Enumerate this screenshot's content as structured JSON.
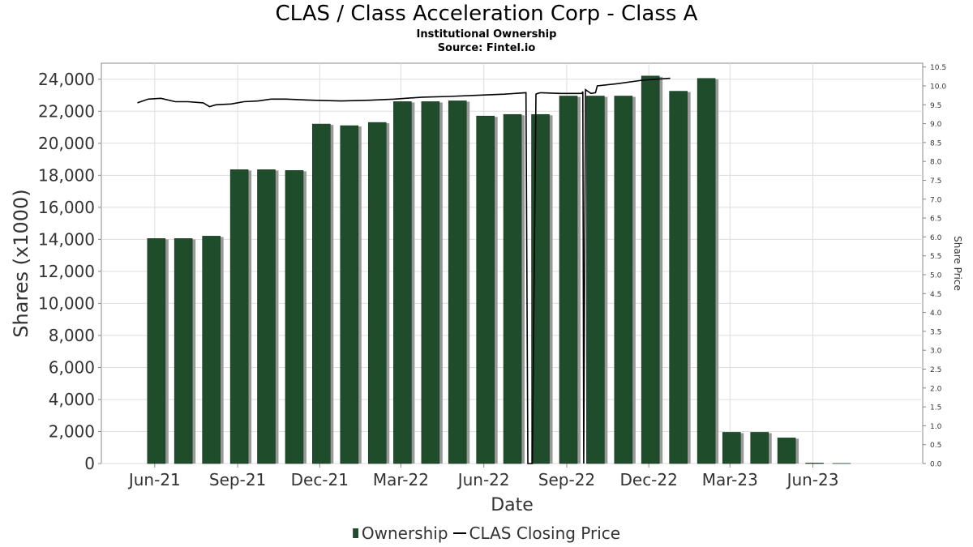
{
  "title": "CLAS / Class Acceleration Corp - Class A",
  "subtitle1": "Institutional Ownership",
  "subtitle2": "Source: Fintel.io",
  "legend": {
    "ownership": "Ownership",
    "price": "CLAS Closing Price"
  },
  "colors": {
    "bar": "#1f4d2c",
    "bar_shadow": "#999999",
    "line": "#000000",
    "grid": "#dddddd"
  },
  "chart_data": {
    "type": "bar",
    "xlabel": "Date",
    "ylabel": "Shares (x1000)",
    "y2label": "Share Price",
    "ylim": [
      0,
      25000
    ],
    "y2lim": [
      0,
      10.6
    ],
    "x_ticks": [
      "Jun-21",
      "Sep-21",
      "Dec-21",
      "Mar-22",
      "Jun-22",
      "Sep-22",
      "Dec-22",
      "Mar-23",
      "Jun-23"
    ],
    "y_ticks": [
      "0",
      "2,000",
      "4,000",
      "6,000",
      "8,000",
      "10,000",
      "12,000",
      "14,000",
      "16,000",
      "18,000",
      "20,000",
      "22,000",
      "24,000"
    ],
    "y2_ticks": [
      "0.0",
      "0.5",
      "1.0",
      "1.5",
      "2.0",
      "2.5",
      "3.0",
      "3.5",
      "4.0",
      "4.5",
      "5.0",
      "5.5",
      "6.0",
      "6.5",
      "7.0",
      "7.5",
      "8.0",
      "8.5",
      "9.0",
      "9.5",
      "10.0",
      "10.5"
    ],
    "series": [
      {
        "name": "Ownership",
        "type": "bar",
        "x": [
          "2021-06-01",
          "2021-07-01",
          "2021-08-01",
          "2021-09-01",
          "2021-10-01",
          "2021-11-01",
          "2021-12-01",
          "2022-01-01",
          "2022-02-01",
          "2022-03-01",
          "2022-04-01",
          "2022-05-01",
          "2022-06-01",
          "2022-07-01",
          "2022-08-01",
          "2022-09-01",
          "2022-10-01",
          "2022-11-01",
          "2022-12-01",
          "2023-01-01",
          "2023-02-01",
          "2023-03-01",
          "2023-04-01",
          "2023-05-01",
          "2023-06-01",
          "2023-07-01"
        ],
        "values": [
          14050,
          14050,
          14200,
          18350,
          18350,
          18300,
          21200,
          21100,
          21300,
          22600,
          22600,
          22650,
          21700,
          21800,
          21800,
          22950,
          22950,
          22950,
          24200,
          23250,
          24050,
          1950,
          1950,
          1600,
          30,
          10
        ]
      },
      {
        "name": "CLAS Closing Price",
        "type": "line",
        "x": [
          "2021-05-20",
          "2021-06-01",
          "2021-06-15",
          "2021-07-01",
          "2021-07-15",
          "2021-08-01",
          "2021-08-08",
          "2021-08-15",
          "2021-09-01",
          "2021-09-15",
          "2021-10-01",
          "2021-10-15",
          "2021-11-01",
          "2021-12-01",
          "2022-01-01",
          "2022-02-01",
          "2022-03-01",
          "2022-04-01",
          "2022-05-01",
          "2022-06-01",
          "2022-07-01",
          "2022-07-25",
          "2022-07-27",
          "2022-08-01",
          "2022-08-05",
          "2022-08-07",
          "2022-08-10",
          "2022-09-01",
          "2022-09-25",
          "2022-09-26",
          "2022-09-27",
          "2022-09-29",
          "2022-10-05",
          "2022-10-10",
          "2022-10-12",
          "2022-11-01",
          "2022-12-01",
          "2023-01-01"
        ],
        "values": [
          9.55,
          9.65,
          9.67,
          9.58,
          9.58,
          9.55,
          9.45,
          9.5,
          9.52,
          9.58,
          9.6,
          9.65,
          9.65,
          9.62,
          9.6,
          9.62,
          9.65,
          9.7,
          9.72,
          9.75,
          9.78,
          9.82,
          0.0,
          0.0,
          9.78,
          9.8,
          9.82,
          9.8,
          9.8,
          9.85,
          0.0,
          9.9,
          9.8,
          9.82,
          10.0,
          10.05,
          10.15,
          10.2
        ]
      }
    ],
    "grid": true,
    "legend_position": "bottom"
  }
}
